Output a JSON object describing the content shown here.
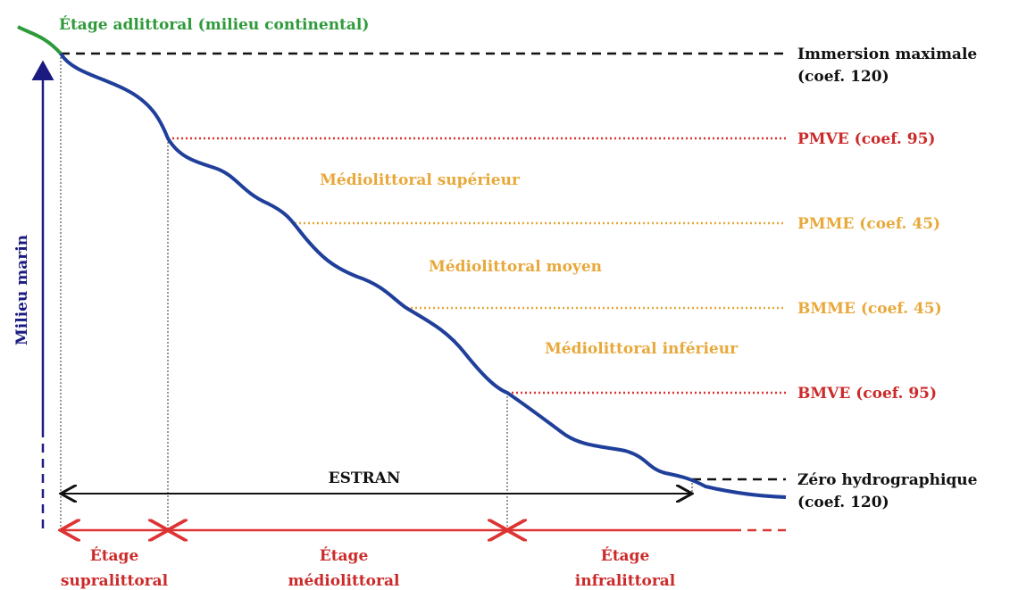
{
  "title": "Étage adlittoral (milieu continental)",
  "levels": [
    {
      "label": [
        "Immersion maximale",
        "(coef. 120)"
      ]
    },
    {
      "label": [
        "PMVE (coef. 95)"
      ]
    },
    {
      "label": [
        "PMME (coef. 45)"
      ]
    },
    {
      "label": [
        "BMME (coef. 45)"
      ]
    },
    {
      "label": [
        "BMVE (coef. 95)"
      ]
    },
    {
      "label": [
        "Zéro hydrographique",
        "(coef. 120)"
      ]
    }
  ],
  "zones": [
    "Médiolittoral supérieur",
    "Médiolittoral moyen",
    "Médiolittoral inférieur"
  ],
  "axis_label": "Milieu marin",
  "estran": "ESTRAN",
  "stages": [
    [
      "Étage",
      "supralittoral"
    ],
    [
      "Étage",
      "médiolittoral"
    ],
    [
      "Étage",
      "infralittoral"
    ]
  ]
}
